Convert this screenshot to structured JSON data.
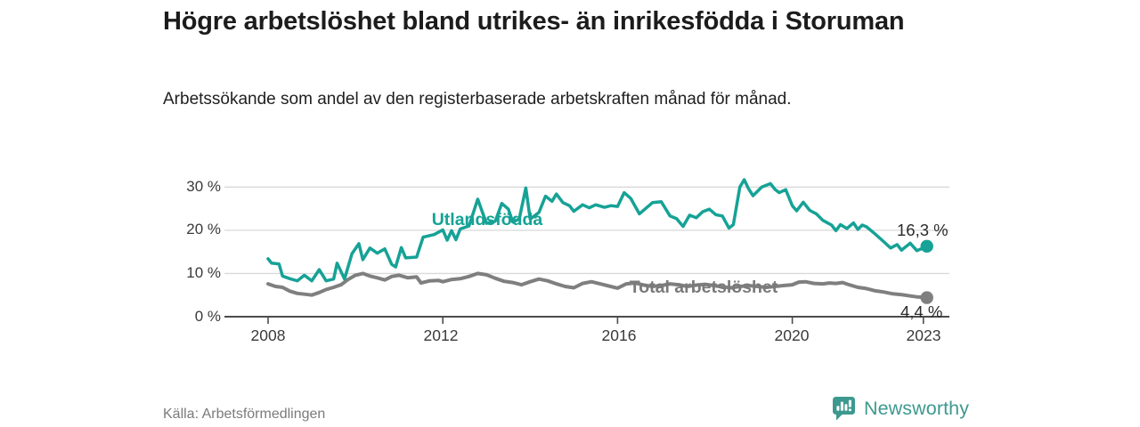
{
  "header": {
    "title": "Högre arbetslöshet bland utrikes- än inrikesfödda i Storuman",
    "subtitle": "Arbetssökande som andel av den registerbaserade arbetskraften månad för månad."
  },
  "footer": {
    "source": "Källa: Arbetsförmedlingen",
    "brand": "Newsworthy"
  },
  "colors": {
    "accent_teal": "#16a296",
    "line_gray": "#7f7f7f",
    "grid": "#d9d9d9",
    "axis": "#4c4c4c",
    "logo_teal": "#3d998f"
  },
  "chart_data": {
    "type": "line",
    "title": "Högre arbetslöshet bland utrikes- än inrikesfödda i Storuman",
    "subtitle": "Arbetssökande som andel av den registerbaserade arbetskraften månad för månad.",
    "xlabel": "",
    "ylabel": "",
    "xlim": [
      2007.6,
      2023.3
    ],
    "ylim": [
      0,
      33
    ],
    "grid": "horizontal",
    "legend_position": "inline-labels",
    "x_ticks": [
      {
        "value": 2008,
        "label": "2008"
      },
      {
        "value": 2012,
        "label": "2012"
      },
      {
        "value": 2016,
        "label": "2016"
      },
      {
        "value": 2020,
        "label": "2020"
      },
      {
        "value": 2023,
        "label": "2023"
      }
    ],
    "y_ticks": [
      {
        "value": 30,
        "label": "30 %"
      },
      {
        "value": 20,
        "label": "20 %"
      },
      {
        "value": 10,
        "label": "10 %"
      },
      {
        "value": 0,
        "label": "0 %"
      }
    ],
    "series": [
      {
        "id": "utlandsfodda",
        "name": "Utlandsfödda",
        "color": "#16a296",
        "stroke_width": 3.5,
        "end_label": "16,3 %",
        "end_value": 16.3,
        "points": [
          [
            2008.0,
            13.4
          ],
          [
            2008.08,
            12.4
          ],
          [
            2008.25,
            12.2
          ],
          [
            2008.33,
            9.4
          ],
          [
            2008.5,
            8.8
          ],
          [
            2008.67,
            8.3
          ],
          [
            2008.83,
            9.6
          ],
          [
            2009.0,
            8.3
          ],
          [
            2009.17,
            10.9
          ],
          [
            2009.33,
            8.3
          ],
          [
            2009.5,
            8.7
          ],
          [
            2009.58,
            12.4
          ],
          [
            2009.75,
            8.7
          ],
          [
            2009.92,
            14.6
          ],
          [
            2010.08,
            16.9
          ],
          [
            2010.17,
            13.2
          ],
          [
            2010.33,
            15.9
          ],
          [
            2010.5,
            14.7
          ],
          [
            2010.67,
            15.7
          ],
          [
            2010.83,
            12.1
          ],
          [
            2010.92,
            11.5
          ],
          [
            2011.05,
            16.0
          ],
          [
            2011.15,
            13.6
          ],
          [
            2011.4,
            13.8
          ],
          [
            2011.55,
            18.4
          ],
          [
            2011.8,
            19.0
          ],
          [
            2012.0,
            20.1
          ],
          [
            2012.1,
            17.7
          ],
          [
            2012.2,
            19.9
          ],
          [
            2012.3,
            17.8
          ],
          [
            2012.4,
            20.3
          ],
          [
            2012.6,
            21.0
          ],
          [
            2012.8,
            27.2
          ],
          [
            2012.92,
            23.8
          ],
          [
            2013.0,
            21.6
          ],
          [
            2013.2,
            22.1
          ],
          [
            2013.35,
            26.2
          ],
          [
            2013.5,
            24.9
          ],
          [
            2013.6,
            21.9
          ],
          [
            2013.75,
            22.6
          ],
          [
            2013.9,
            29.8
          ],
          [
            2014.0,
            22.6
          ],
          [
            2014.2,
            24.1
          ],
          [
            2014.35,
            27.9
          ],
          [
            2014.5,
            26.7
          ],
          [
            2014.6,
            28.4
          ],
          [
            2014.75,
            26.4
          ],
          [
            2014.9,
            25.7
          ],
          [
            2015.0,
            24.4
          ],
          [
            2015.2,
            25.9
          ],
          [
            2015.35,
            25.2
          ],
          [
            2015.5,
            25.9
          ],
          [
            2015.7,
            25.3
          ],
          [
            2015.85,
            25.7
          ],
          [
            2016.0,
            25.5
          ],
          [
            2016.15,
            28.7
          ],
          [
            2016.3,
            27.4
          ],
          [
            2016.5,
            23.8
          ],
          [
            2016.65,
            25.1
          ],
          [
            2016.8,
            26.4
          ],
          [
            2017.0,
            26.6
          ],
          [
            2017.2,
            23.3
          ],
          [
            2017.35,
            22.7
          ],
          [
            2017.5,
            20.9
          ],
          [
            2017.65,
            23.5
          ],
          [
            2017.8,
            22.9
          ],
          [
            2017.95,
            24.3
          ],
          [
            2018.1,
            24.9
          ],
          [
            2018.25,
            23.6
          ],
          [
            2018.4,
            23.3
          ],
          [
            2018.55,
            20.5
          ],
          [
            2018.65,
            21.3
          ],
          [
            2018.8,
            30.0
          ],
          [
            2018.9,
            31.7
          ],
          [
            2019.0,
            29.6
          ],
          [
            2019.1,
            28.0
          ],
          [
            2019.3,
            30.0
          ],
          [
            2019.5,
            30.8
          ],
          [
            2019.6,
            29.5
          ],
          [
            2019.7,
            28.7
          ],
          [
            2019.85,
            29.4
          ],
          [
            2020.0,
            25.7
          ],
          [
            2020.1,
            24.5
          ],
          [
            2020.25,
            26.5
          ],
          [
            2020.4,
            24.6
          ],
          [
            2020.55,
            23.8
          ],
          [
            2020.7,
            22.3
          ],
          [
            2020.9,
            21.2
          ],
          [
            2021.0,
            19.9
          ],
          [
            2021.1,
            21.3
          ],
          [
            2021.25,
            20.4
          ],
          [
            2021.4,
            21.7
          ],
          [
            2021.5,
            20.2
          ],
          [
            2021.6,
            21.2
          ],
          [
            2021.7,
            20.8
          ],
          [
            2021.9,
            19.1
          ],
          [
            2022.1,
            17.3
          ],
          [
            2022.25,
            15.9
          ],
          [
            2022.4,
            16.7
          ],
          [
            2022.5,
            15.4
          ],
          [
            2022.7,
            17.0
          ],
          [
            2022.85,
            15.3
          ],
          [
            2023.0,
            15.9
          ],
          [
            2023.08,
            16.3
          ]
        ]
      },
      {
        "id": "total-arbetsloshet",
        "name": "Total arbetslöshet",
        "color": "#7f7f7f",
        "stroke_width": 4,
        "end_label": "4,4 %",
        "end_value": 4.4,
        "points": [
          [
            2008.0,
            7.6
          ],
          [
            2008.17,
            7.0
          ],
          [
            2008.33,
            6.8
          ],
          [
            2008.5,
            5.9
          ],
          [
            2008.67,
            5.4
          ],
          [
            2008.83,
            5.2
          ],
          [
            2009.0,
            5.0
          ],
          [
            2009.17,
            5.6
          ],
          [
            2009.33,
            6.3
          ],
          [
            2009.5,
            6.8
          ],
          [
            2009.67,
            7.4
          ],
          [
            2009.83,
            8.6
          ],
          [
            2010.0,
            9.6
          ],
          [
            2010.17,
            10.0
          ],
          [
            2010.33,
            9.4
          ],
          [
            2010.5,
            9.0
          ],
          [
            2010.67,
            8.5
          ],
          [
            2010.83,
            9.3
          ],
          [
            2011.0,
            9.6
          ],
          [
            2011.2,
            9.0
          ],
          [
            2011.4,
            9.2
          ],
          [
            2011.5,
            7.8
          ],
          [
            2011.7,
            8.3
          ],
          [
            2011.9,
            8.4
          ],
          [
            2012.0,
            8.1
          ],
          [
            2012.2,
            8.6
          ],
          [
            2012.4,
            8.8
          ],
          [
            2012.6,
            9.3
          ],
          [
            2012.8,
            10.0
          ],
          [
            2013.0,
            9.7
          ],
          [
            2013.2,
            8.9
          ],
          [
            2013.4,
            8.2
          ],
          [
            2013.6,
            7.9
          ],
          [
            2013.8,
            7.4
          ],
          [
            2014.0,
            8.1
          ],
          [
            2014.2,
            8.7
          ],
          [
            2014.4,
            8.3
          ],
          [
            2014.6,
            7.6
          ],
          [
            2014.8,
            7.0
          ],
          [
            2015.0,
            6.7
          ],
          [
            2015.2,
            7.7
          ],
          [
            2015.4,
            8.1
          ],
          [
            2015.6,
            7.6
          ],
          [
            2015.8,
            7.1
          ],
          [
            2016.0,
            6.6
          ],
          [
            2016.2,
            7.6
          ],
          [
            2016.4,
            7.8
          ],
          [
            2016.6,
            7.3
          ],
          [
            2016.8,
            7.0
          ],
          [
            2017.0,
            7.2
          ],
          [
            2017.2,
            7.6
          ],
          [
            2017.4,
            7.4
          ],
          [
            2017.6,
            7.0
          ],
          [
            2017.8,
            7.3
          ],
          [
            2018.0,
            7.5
          ],
          [
            2018.2,
            7.2
          ],
          [
            2018.4,
            6.9
          ],
          [
            2018.6,
            6.7
          ],
          [
            2018.8,
            7.0
          ],
          [
            2019.0,
            7.2
          ],
          [
            2019.2,
            7.0
          ],
          [
            2019.4,
            6.8
          ],
          [
            2019.6,
            7.0
          ],
          [
            2019.8,
            7.2
          ],
          [
            2020.0,
            7.4
          ],
          [
            2020.15,
            8.0
          ],
          [
            2020.3,
            8.1
          ],
          [
            2020.5,
            7.7
          ],
          [
            2020.7,
            7.6
          ],
          [
            2020.85,
            7.8
          ],
          [
            2021.0,
            7.7
          ],
          [
            2021.15,
            7.9
          ],
          [
            2021.3,
            7.4
          ],
          [
            2021.5,
            6.8
          ],
          [
            2021.7,
            6.5
          ],
          [
            2021.9,
            6.0
          ],
          [
            2022.1,
            5.7
          ],
          [
            2022.3,
            5.3
          ],
          [
            2022.5,
            5.1
          ],
          [
            2022.7,
            4.8
          ],
          [
            2022.85,
            4.6
          ],
          [
            2023.0,
            4.5
          ],
          [
            2023.08,
            4.4
          ]
        ]
      }
    ]
  }
}
